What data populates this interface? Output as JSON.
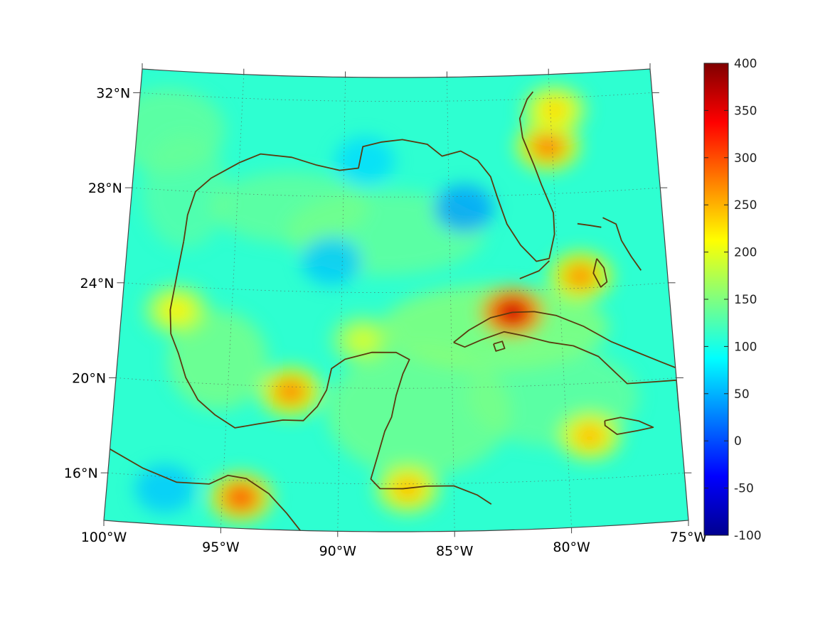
{
  "map": {
    "projection": "conic (Lambert-like)",
    "extent": {
      "lon": [
        -100,
        -75
      ],
      "lat": [
        14,
        33
      ]
    },
    "grid": "dotted",
    "lon_labels": [
      "100°W",
      "95°W",
      "90°W",
      "85°W",
      "80°W",
      "75°W"
    ],
    "lat_labels": [
      "32°N",
      "28°N",
      "24°N",
      "20°N",
      "16°N"
    ],
    "coastline_color": "#5a3a0e",
    "colormap": "jet"
  },
  "chart_data": {
    "type": "heatmap",
    "colorbar": {
      "min": -100,
      "max": 400,
      "ticks": [
        "400",
        "350",
        "300",
        "250",
        "200",
        "150",
        "100",
        "50",
        "0",
        "-50",
        "-100"
      ],
      "colormap": "jet"
    },
    "background_level": 110,
    "hotspots": [
      {
        "region": "Cuba north coast",
        "lon": -82.2,
        "lat": 23.1,
        "value": 370
      },
      {
        "region": "Bay of Campeche",
        "lon": -92.2,
        "lat": 19.8,
        "value": 275
      },
      {
        "region": "Atlantic off Georgia",
        "lon": -80.2,
        "lat": 30.0,
        "value": 280
      },
      {
        "region": "Atlantic off Carolina",
        "lon": -79.8,
        "lat": 31.5,
        "value": 235
      },
      {
        "region": "Gulf of Tehuantepec",
        "lon": -94.2,
        "lat": 15.3,
        "value": 300
      },
      {
        "region": "Bahamas",
        "lon": -79.0,
        "lat": 24.5,
        "value": 270
      },
      {
        "region": "Jamaica south",
        "lon": -79.0,
        "lat": 17.8,
        "value": 250
      },
      {
        "region": "Honduras coast",
        "lon": -87.0,
        "lat": 15.8,
        "value": 250
      },
      {
        "region": "Western Gulf coast",
        "lon": -97.5,
        "lat": 23.0,
        "value": 220
      },
      {
        "region": "Central Gulf",
        "lon": -89.0,
        "lat": 22.0,
        "value": 195
      }
    ],
    "lows": [
      {
        "region": "West Florida shelf",
        "lon": -84.3,
        "lat": 27.5,
        "value": 40
      },
      {
        "region": "Central Gulf",
        "lon": -90.5,
        "lat": 25.3,
        "value": 60
      },
      {
        "region": "Pacific south of Mexico",
        "lon": -97.5,
        "lat": 15.5,
        "value": 60
      },
      {
        "region": "Northern Gulf shelf",
        "lon": -89.0,
        "lat": 29.5,
        "value": 70
      }
    ]
  }
}
